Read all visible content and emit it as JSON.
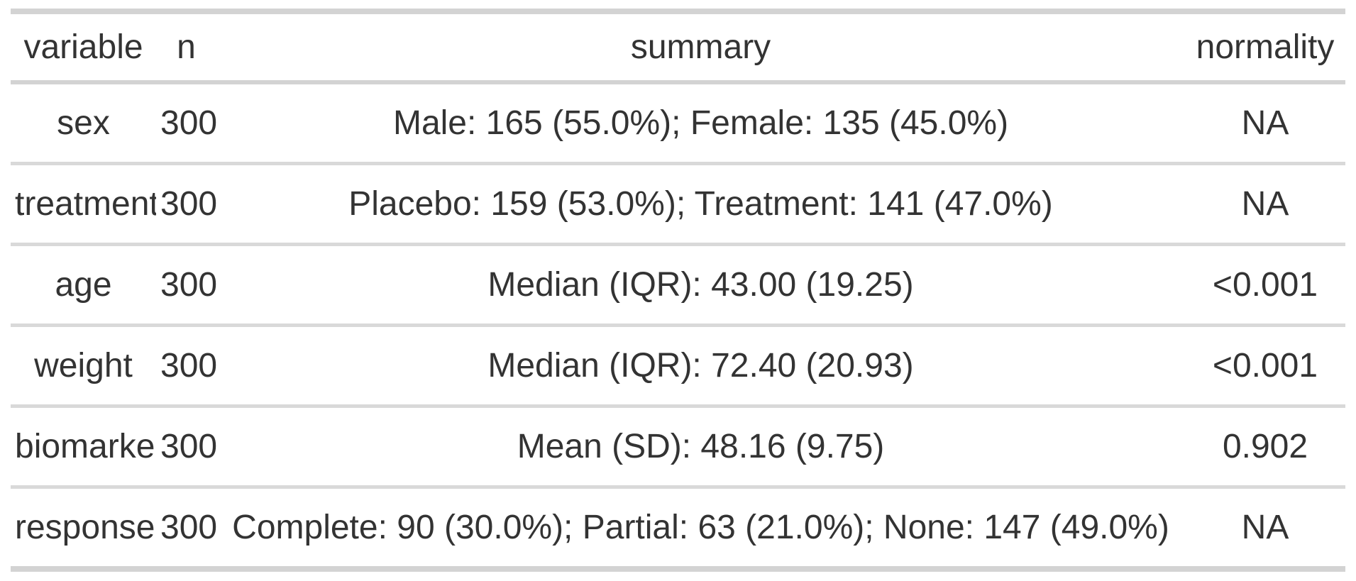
{
  "colors": {
    "text": "#333333",
    "border_heavy": "#d3d3d3",
    "border_light": "#d9d9d9",
    "background": "#ffffff"
  },
  "table": {
    "columns": [
      {
        "key": "variable",
        "label": "variable"
      },
      {
        "key": "n",
        "label": "n"
      },
      {
        "key": "summary",
        "label": "summary"
      },
      {
        "key": "normality",
        "label": "normality"
      }
    ],
    "rows": [
      {
        "variable": "sex",
        "n": "300",
        "summary": "Male: 165 (55.0%); Female: 135 (45.0%)",
        "normality": "NA"
      },
      {
        "variable": "treatment",
        "n": "300",
        "summary": "Placebo: 159 (53.0%); Treatment: 141 (47.0%)",
        "normality": "NA"
      },
      {
        "variable": "age",
        "n": "300",
        "summary": "Median (IQR): 43.00 (19.25)",
        "normality": "<0.001"
      },
      {
        "variable": "weight",
        "n": "300",
        "summary": "Median (IQR): 72.40 (20.93)",
        "normality": "<0.001"
      },
      {
        "variable": "biomarker",
        "n": "300",
        "summary": "Mean (SD): 48.16 (9.75)",
        "normality": "0.902"
      },
      {
        "variable": "response",
        "n": "300",
        "summary": "Complete: 90 (30.0%); Partial: 63 (21.0%); None: 147 (49.0%)",
        "normality": "NA"
      }
    ]
  },
  "chart_data": {
    "type": "table",
    "title": "",
    "columns": [
      "variable",
      "n",
      "summary",
      "normality"
    ],
    "rows": [
      [
        "sex",
        300,
        "Male: 165 (55.0%); Female: 135 (45.0%)",
        "NA"
      ],
      [
        "treatment",
        300,
        "Placebo: 159 (53.0%); Treatment: 141 (47.0%)",
        "NA"
      ],
      [
        "age",
        300,
        "Median (IQR): 43.00 (19.25)",
        "<0.001"
      ],
      [
        "weight",
        300,
        "Median (IQR): 72.40 (20.93)",
        "<0.001"
      ],
      [
        "biomarker",
        300,
        "Mean (SD): 48.16 (9.75)",
        "0.902"
      ],
      [
        "response",
        300,
        "Complete: 90 (30.0%); Partial: 63 (21.0%); None: 147 (49.0%)",
        "NA"
      ]
    ],
    "layout_hints": {
      "column_alignment": [
        "center",
        "center",
        "center",
        "center"
      ],
      "header_bold": false,
      "rules": "horizontal-only"
    }
  }
}
